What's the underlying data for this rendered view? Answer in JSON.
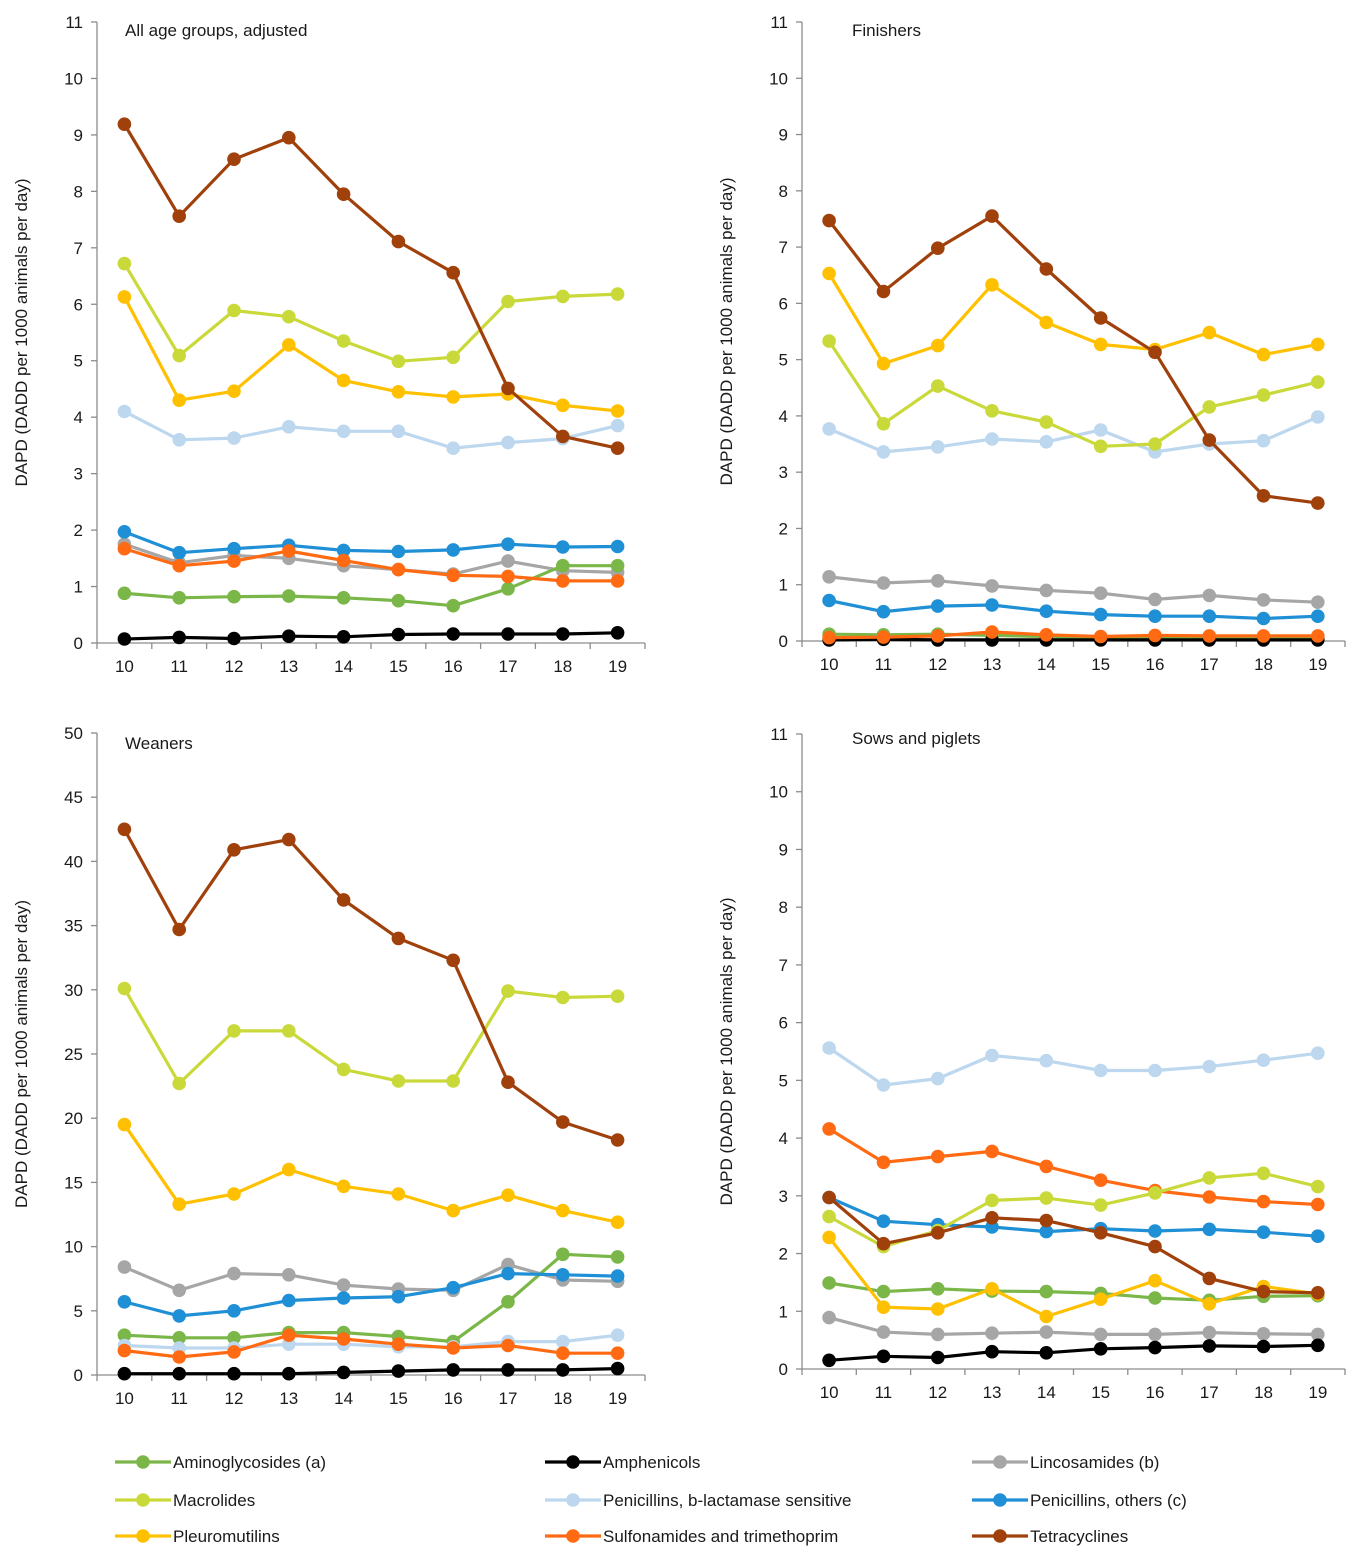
{
  "palette": {
    "Aminoglycosides (a)": "#7ab648",
    "Amphenicols": "#000000",
    "Lincosamides (b)": "#a6a6a6",
    "Macrolides": "#c9d93a",
    "Penicillins,  b-lactamase sensitive": "#bcd7ee",
    "Penicillins, others (c)": "#1f8fd6",
    "Pleuromutilins": "#ffc000",
    "Sulfonamides and trimethoprim": "#ff6a13",
    "Tetracyclines": "#a0400b"
  },
  "legend": [
    "Aminoglycosides (a)",
    "Amphenicols",
    "Lincosamides (b)",
    "Macrolides",
    "Penicillins,  b-lactamase sensitive",
    "Penicillins, others (c)",
    "Pleuromutilins",
    "Sulfonamides and trimethoprim",
    "Tetracyclines"
  ],
  "chart_data": [
    {
      "type": "line",
      "title": "All age groups, adjusted",
      "ylabel": "DAPD (DADD per 1000 animals per day)",
      "xlabel": "",
      "ylim": [
        0,
        11
      ],
      "yticks": [
        0,
        1,
        2,
        3,
        4,
        5,
        6,
        7,
        8,
        9,
        10,
        11
      ],
      "x": [
        "10",
        "11",
        "12",
        "13",
        "14",
        "15",
        "16",
        "17",
        "18",
        "19"
      ],
      "series": [
        {
          "name": "Lincosamides (b)",
          "values": [
            1.75,
            1.42,
            1.55,
            1.5,
            1.37,
            1.3,
            1.22,
            1.45,
            1.28,
            1.25
          ]
        },
        {
          "name": "Aminoglycosides (a)",
          "values": [
            0.88,
            0.8,
            0.82,
            0.83,
            0.8,
            0.75,
            0.66,
            0.96,
            1.37,
            1.37
          ]
        },
        {
          "name": "Amphenicols",
          "values": [
            0.07,
            0.1,
            0.08,
            0.12,
            0.11,
            0.15,
            0.16,
            0.16,
            0.16,
            0.18
          ]
        },
        {
          "name": "Penicillins,  b-lactamase sensitive",
          "values": [
            4.1,
            3.6,
            3.63,
            3.83,
            3.75,
            3.75,
            3.45,
            3.55,
            3.62,
            3.85
          ]
        },
        {
          "name": "Penicillins, others (c)",
          "values": [
            1.97,
            1.6,
            1.67,
            1.73,
            1.64,
            1.62,
            1.65,
            1.75,
            1.7,
            1.71
          ]
        },
        {
          "name": "Sulfonamides and trimethoprim",
          "values": [
            1.67,
            1.37,
            1.45,
            1.63,
            1.46,
            1.3,
            1.2,
            1.18,
            1.1,
            1.1
          ]
        },
        {
          "name": "Pleuromutilins",
          "values": [
            6.13,
            4.3,
            4.46,
            5.28,
            4.65,
            4.45,
            4.36,
            4.41,
            4.21,
            4.11
          ]
        },
        {
          "name": "Macrolides",
          "values": [
            6.72,
            5.09,
            5.89,
            5.78,
            5.35,
            4.99,
            5.06,
            6.05,
            6.14,
            6.18
          ]
        },
        {
          "name": "Tetracyclines",
          "values": [
            9.19,
            7.56,
            8.57,
            8.95,
            7.95,
            7.11,
            6.56,
            4.51,
            3.66,
            3.45
          ]
        }
      ]
    },
    {
      "type": "line",
      "title": "Finishers",
      "ylabel": "DAPD (DADD per 1000 animals per day)",
      "xlabel": "",
      "ylim": [
        0,
        11
      ],
      "yticks": [
        0,
        1,
        2,
        3,
        4,
        5,
        6,
        7,
        8,
        9,
        10,
        11
      ],
      "x": [
        "10",
        "11",
        "12",
        "13",
        "14",
        "15",
        "16",
        "17",
        "18",
        "19"
      ],
      "series": [
        {
          "name": "Lincosamides (b)",
          "values": [
            1.14,
            1.03,
            1.07,
            0.98,
            0.9,
            0.85,
            0.74,
            0.81,
            0.73,
            0.69
          ]
        },
        {
          "name": "Aminoglycosides (a)",
          "values": [
            0.12,
            0.11,
            0.12,
            0.1,
            0.08,
            0.06,
            0.06,
            0.05,
            0.06,
            0.06
          ]
        },
        {
          "name": "Amphenicols",
          "values": [
            0.02,
            0.03,
            0.02,
            0.02,
            0.02,
            0.02,
            0.02,
            0.02,
            0.02,
            0.02
          ]
        },
        {
          "name": "Penicillins,  b-lactamase sensitive",
          "values": [
            3.77,
            3.36,
            3.45,
            3.59,
            3.54,
            3.75,
            3.36,
            3.5,
            3.56,
            3.98
          ]
        },
        {
          "name": "Penicillins, others (c)",
          "values": [
            0.72,
            0.52,
            0.62,
            0.64,
            0.53,
            0.47,
            0.44,
            0.44,
            0.4,
            0.44
          ]
        },
        {
          "name": "Sulfonamides and trimethoprim",
          "values": [
            0.06,
            0.07,
            0.09,
            0.16,
            0.11,
            0.08,
            0.1,
            0.09,
            0.09,
            0.09
          ]
        },
        {
          "name": "Pleuromutilins",
          "values": [
            6.53,
            4.93,
            5.25,
            6.33,
            5.66,
            5.27,
            5.18,
            5.48,
            5.09,
            5.27
          ]
        },
        {
          "name": "Macrolides",
          "values": [
            5.33,
            3.86,
            4.53,
            4.09,
            3.89,
            3.46,
            3.5,
            4.16,
            4.37,
            4.6
          ]
        },
        {
          "name": "Tetracyclines",
          "values": [
            7.47,
            6.21,
            6.98,
            7.55,
            6.61,
            5.74,
            5.13,
            3.57,
            2.58,
            2.45
          ]
        }
      ]
    },
    {
      "type": "line",
      "title": "Weaners",
      "ylabel": "DAPD (DADD per 1000 animals per day)",
      "xlabel": "",
      "ylim": [
        0,
        50
      ],
      "yticks": [
        0,
        5,
        10,
        15,
        20,
        25,
        30,
        35,
        40,
        45,
        50
      ],
      "x": [
        "10",
        "11",
        "12",
        "13",
        "14",
        "15",
        "16",
        "17",
        "18",
        "19"
      ],
      "series": [
        {
          "name": "Lincosamides (b)",
          "values": [
            8.4,
            6.6,
            7.9,
            7.8,
            7.0,
            6.7,
            6.6,
            8.6,
            7.4,
            7.3
          ]
        },
        {
          "name": "Aminoglycosides (a)",
          "values": [
            3.1,
            2.9,
            2.9,
            3.3,
            3.3,
            3.0,
            2.6,
            5.7,
            9.4,
            9.2
          ]
        },
        {
          "name": "Amphenicols",
          "values": [
            0.1,
            0.1,
            0.1,
            0.1,
            0.2,
            0.3,
            0.4,
            0.4,
            0.4,
            0.5
          ]
        },
        {
          "name": "Penicillins,  b-lactamase sensitive",
          "values": [
            2.3,
            2.1,
            2.1,
            2.4,
            2.4,
            2.2,
            2.2,
            2.6,
            2.6,
            3.1
          ]
        },
        {
          "name": "Penicillins, others (c)",
          "values": [
            5.7,
            4.6,
            5.0,
            5.8,
            6.0,
            6.1,
            6.8,
            7.9,
            7.8,
            7.7
          ]
        },
        {
          "name": "Sulfonamides and trimethoprim",
          "values": [
            1.9,
            1.4,
            1.8,
            3.1,
            2.8,
            2.4,
            2.1,
            2.3,
            1.7,
            1.7
          ]
        },
        {
          "name": "Pleuromutilins",
          "values": [
            19.5,
            13.3,
            14.1,
            16.0,
            14.7,
            14.1,
            12.8,
            14.0,
            12.8,
            11.9
          ]
        },
        {
          "name": "Macrolides",
          "values": [
            30.1,
            22.7,
            26.8,
            26.8,
            23.8,
            22.9,
            22.9,
            29.9,
            29.4,
            29.5
          ]
        },
        {
          "name": "Tetracyclines",
          "values": [
            42.5,
            34.7,
            40.9,
            41.7,
            37.0,
            34.0,
            32.3,
            22.8,
            19.7,
            18.3
          ]
        }
      ]
    },
    {
      "type": "line",
      "title": "Sows and piglets",
      "ylabel": "DAPD (DADD per 1000 animals per day)",
      "xlabel": "",
      "ylim": [
        0,
        11
      ],
      "yticks": [
        0,
        1,
        2,
        3,
        4,
        5,
        6,
        7,
        8,
        9,
        10,
        11
      ],
      "x": [
        "10",
        "11",
        "12",
        "13",
        "14",
        "15",
        "16",
        "17",
        "18",
        "19"
      ],
      "series": [
        {
          "name": "Lincosamides (b)",
          "values": [
            0.89,
            0.64,
            0.6,
            0.62,
            0.64,
            0.6,
            0.6,
            0.63,
            0.61,
            0.6
          ]
        },
        {
          "name": "Aminoglycosides (a)",
          "values": [
            1.49,
            1.34,
            1.39,
            1.35,
            1.34,
            1.31,
            1.23,
            1.19,
            1.26,
            1.27
          ]
        },
        {
          "name": "Amphenicols",
          "values": [
            0.15,
            0.22,
            0.2,
            0.3,
            0.28,
            0.35,
            0.37,
            0.4,
            0.39,
            0.41
          ]
        },
        {
          "name": "Penicillins,  b-lactamase sensitive",
          "values": [
            5.56,
            4.92,
            5.03,
            5.43,
            5.34,
            5.17,
            5.17,
            5.24,
            5.35,
            5.47
          ]
        },
        {
          "name": "Penicillins, others (c)",
          "values": [
            2.97,
            2.56,
            2.5,
            2.46,
            2.38,
            2.43,
            2.39,
            2.42,
            2.37,
            2.3
          ]
        },
        {
          "name": "Sulfonamides and trimethoprim",
          "values": [
            4.16,
            3.58,
            3.68,
            3.77,
            3.51,
            3.27,
            3.09,
            2.98,
            2.9,
            2.85
          ]
        },
        {
          "name": "Pleuromutilins",
          "values": [
            2.28,
            1.07,
            1.04,
            1.39,
            0.91,
            1.21,
            1.53,
            1.13,
            1.43,
            1.3
          ]
        },
        {
          "name": "Macrolides",
          "values": [
            2.64,
            2.12,
            2.4,
            2.92,
            2.96,
            2.84,
            3.05,
            3.31,
            3.39,
            3.16
          ]
        },
        {
          "name": "Tetracyclines",
          "values": [
            2.97,
            2.17,
            2.36,
            2.62,
            2.57,
            2.36,
            2.12,
            1.57,
            1.34,
            1.32
          ]
        }
      ]
    }
  ]
}
